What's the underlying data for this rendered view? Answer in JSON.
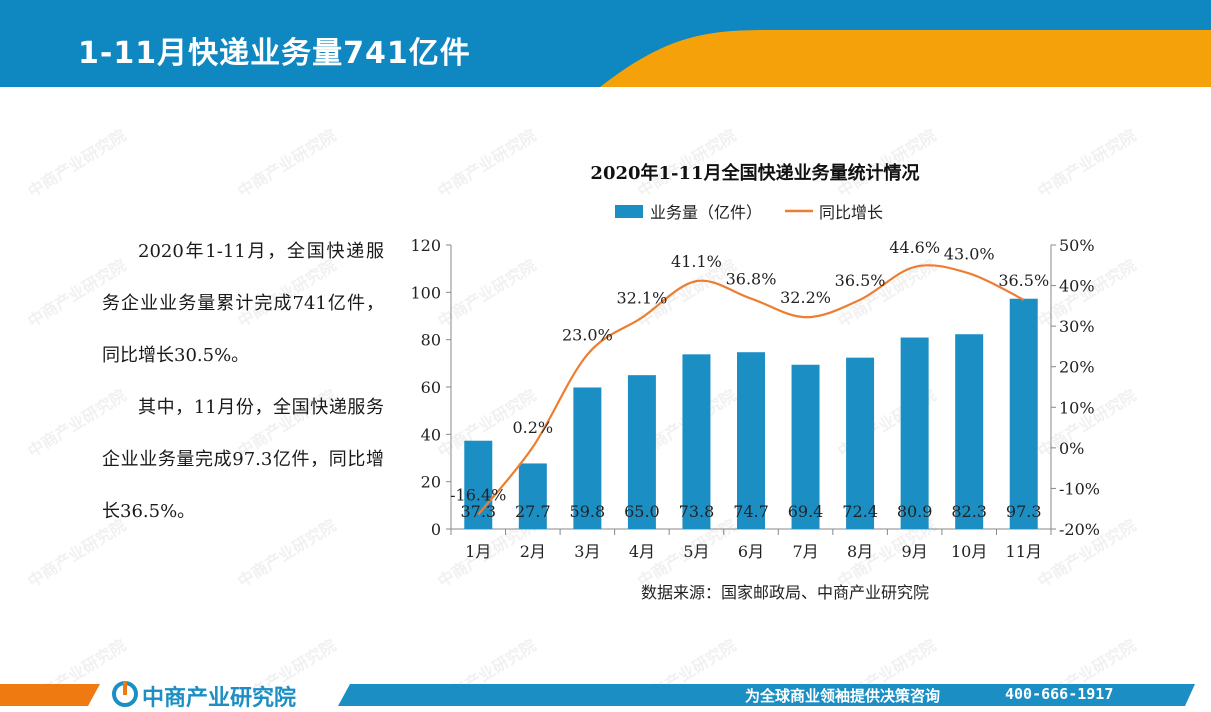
{
  "header": {
    "title": "1-11月快递业务量741亿件"
  },
  "body": {
    "paragraph1": "2020年1-11月，全国快递服务企业业务量累计完成741亿件，同比增长30.5%。",
    "paragraph2": "其中，11月份，全国快递服务企业业务量完成97.3亿件，同比增长36.5%。"
  },
  "chart_data": {
    "type": "bar",
    "title": "2020年1-11月全国快递业务量统计情况",
    "categories": [
      "1月",
      "2月",
      "3月",
      "4月",
      "5月",
      "6月",
      "7月",
      "8月",
      "9月",
      "10月",
      "11月"
    ],
    "series": [
      {
        "name": "业务量（亿件）",
        "type": "bar",
        "axis": "left",
        "values": [
          37.3,
          27.7,
          59.8,
          65.0,
          73.8,
          74.7,
          69.4,
          72.4,
          80.9,
          82.3,
          97.3
        ],
        "labels": [
          "37.3",
          "27.7",
          "59.8",
          "65.0",
          "73.8",
          "74.7",
          "69.4",
          "72.4",
          "80.9",
          "82.3",
          "97.3"
        ]
      },
      {
        "name": "同比增长",
        "type": "line",
        "axis": "right",
        "values": [
          -16.4,
          0.2,
          23.0,
          32.1,
          41.1,
          36.8,
          32.2,
          36.5,
          44.6,
          43.0,
          36.5
        ],
        "labels": [
          "-16.4%",
          "0.2%",
          "23.0%",
          "32.1%",
          "41.1%",
          "36.8%",
          "32.2%",
          "36.5%",
          "44.6%",
          "43.0%",
          "36.5%"
        ]
      }
    ],
    "ylim_left": [
      0,
      120
    ],
    "yticks_left": [
      "0",
      "20",
      "40",
      "60",
      "80",
      "100",
      "120"
    ],
    "ylim_right": [
      -20,
      50
    ],
    "yticks_right": [
      "-20%",
      "-10%",
      "0%",
      "10%",
      "20%",
      "30%",
      "40%",
      "50%"
    ],
    "legend_position": "top",
    "source": "数据来源：国家邮政局、中商产业研究院",
    "colors": {
      "bar": "#1b8fc4",
      "line": "#ed7d31"
    }
  },
  "footer": {
    "logo": "中商产业研究院",
    "slogan": "为全球商业领袖提供决策咨询",
    "phone": "400-666-1917"
  },
  "watermark": {
    "text": "中商产业研究院"
  },
  "colors": {
    "header_blue": "#0f87c0",
    "header_orange": "#f5a20a",
    "footer_blue": "#1b8fc4",
    "footer_orange": "#ef7a12"
  }
}
